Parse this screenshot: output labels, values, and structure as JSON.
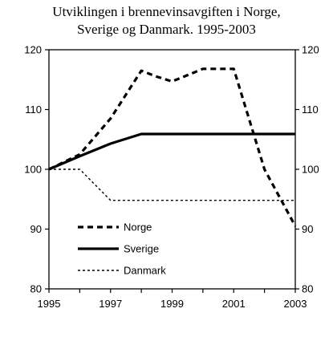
{
  "chart_data": {
    "type": "line",
    "title_line1": "Utviklingen i brennevinsavgiften i Norge,",
    "title_line2": "Sverige og Danmark. 1995-2003",
    "xlabel": "",
    "ylabel": "",
    "xlim": [
      1995,
      2003
    ],
    "ylim": [
      80,
      120
    ],
    "x_ticks": [
      1995,
      1996,
      1997,
      1998,
      1999,
      2000,
      2001,
      2002,
      2003
    ],
    "x_tick_labels": [
      "1995",
      "1997",
      "1999",
      "2001",
      "2003"
    ],
    "y_ticks": [
      80,
      90,
      100,
      110,
      120
    ],
    "y_tick_labels": [
      "80",
      "90",
      "100",
      "110",
      "120"
    ],
    "grid": false,
    "legend_position": "bottom-left",
    "series": [
      {
        "name": "Norge",
        "style": "dashed",
        "color": "#000000",
        "x": [
          1995,
          1996,
          1997,
          1998,
          1998.5,
          1999,
          2000,
          2001,
          2002,
          2003
        ],
        "values": [
          100,
          102.5,
          108.5,
          116.5,
          115.5,
          114.7,
          116.8,
          116.8,
          100,
          90.5
        ]
      },
      {
        "name": "Sverige",
        "style": "solid",
        "color": "#000000",
        "x": [
          1995,
          1996,
          1997,
          1998,
          1999,
          2000,
          2001,
          2002,
          2003
        ],
        "values": [
          100,
          102.2,
          104.3,
          105.9,
          105.9,
          105.9,
          105.9,
          105.9,
          105.9
        ]
      },
      {
        "name": "Danmark",
        "style": "dotted",
        "color": "#000000",
        "x": [
          1995,
          1996,
          1997,
          1998,
          1999,
          2000,
          2001,
          2002,
          2003
        ],
        "values": [
          100,
          100,
          94.8,
          94.8,
          94.8,
          94.8,
          94.8,
          94.8,
          94.8
        ]
      }
    ]
  }
}
